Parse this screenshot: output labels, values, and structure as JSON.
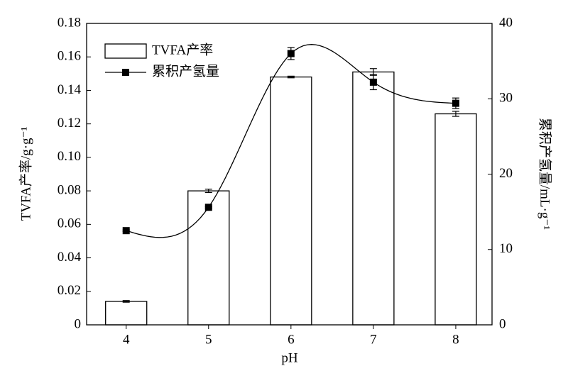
{
  "chart_data": {
    "type": "combo",
    "x": [
      4,
      5,
      6,
      7,
      8
    ],
    "xlim": [
      3.52,
      8.44
    ],
    "xticks": [
      4,
      5,
      6,
      7,
      8
    ],
    "xlabel": "pH",
    "ylabel": "TVFA产率/g·g⁻¹",
    "y2label": "累积产氢量/mL·g⁻¹",
    "ylim": [
      0,
      0.18
    ],
    "yticks": [
      0,
      0.02,
      0.04,
      0.06,
      0.08,
      {
        "value": 0.1,
        "label": "0.10"
      },
      0.12,
      0.14,
      0.16,
      0.18
    ],
    "y2lim": [
      0,
      40
    ],
    "y2ticks": [
      0,
      10,
      20,
      30,
      40
    ],
    "legend": "upper left",
    "series": [
      {
        "name": "TVFA产率",
        "type": "bar",
        "color": "#ffffff",
        "values": [
          0.014,
          0.08,
          0.148,
          0.151,
          0.126
        ],
        "errors": [
          0.0005,
          0.001,
          0.0005,
          0.002,
          0.0015
        ]
      },
      {
        "name": "累积产氢量",
        "type": "line",
        "axis": "y2",
        "color": "#000000",
        "values": [
          12.5,
          15.6,
          36.0,
          32.2,
          29.4
        ],
        "errors": [
          0.1,
          0.1,
          0.8,
          1.0,
          0.7
        ]
      }
    ]
  }
}
